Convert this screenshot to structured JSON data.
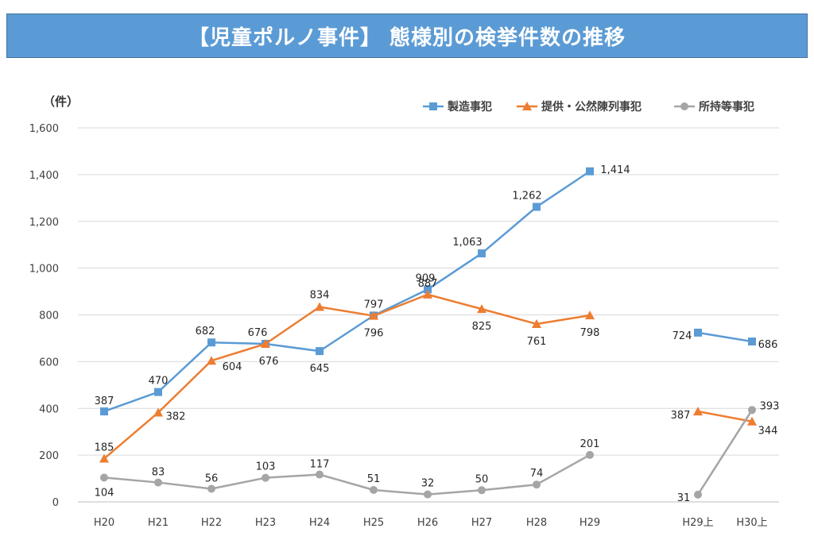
{
  "header": {
    "title": "【児童ポルノ事件】 態様別の検挙件数の推移"
  },
  "chart_data": {
    "type": "line",
    "title": "【児童ポルノ事件】 態様別の検挙件数の推移",
    "ylabel": "（件）",
    "xlabel": "",
    "ylim": [
      0,
      1600
    ],
    "yticks": [
      0,
      200,
      400,
      600,
      800,
      1000,
      1200,
      1400,
      1600
    ],
    "ytick_labels": [
      "0",
      "200",
      "400",
      "600",
      "800",
      "1,000",
      "1,200",
      "1,400",
      "1,600"
    ],
    "grid": true,
    "legend_position": "top-right",
    "categories": [
      "H20",
      "H21",
      "H22",
      "H23",
      "H24",
      "H25",
      "H26",
      "H27",
      "H28",
      "H29",
      "H29上",
      "H30上"
    ],
    "groups": [
      [
        0,
        1,
        2,
        3,
        4,
        5,
        6,
        7,
        8,
        9
      ],
      [
        10,
        11
      ]
    ],
    "series": [
      {
        "name": "製造事犯",
        "marker": "square",
        "color": "#5b9bd5",
        "values": [
          387,
          470,
          682,
          676,
          645,
          797,
          909,
          1063,
          1262,
          1414,
          724,
          686
        ],
        "labels": [
          "387",
          "470",
          "682",
          "676",
          "645",
          "797",
          "909",
          "1,063",
          "1,262",
          "1,414",
          "724",
          "686"
        ]
      },
      {
        "name": "提供・公然陳列事犯",
        "marker": "triangle",
        "color": "#ed7d31",
        "values": [
          185,
          382,
          604,
          676,
          834,
          796,
          887,
          825,
          761,
          798,
          387,
          344
        ],
        "labels": [
          "185",
          "382",
          "604",
          "676",
          "834",
          "796",
          "887",
          "825",
          "761",
          "798",
          "387",
          "344"
        ]
      },
      {
        "name": "所持等事犯",
        "marker": "circle",
        "color": "#a5a5a5",
        "values": [
          104,
          83,
          56,
          103,
          117,
          51,
          32,
          50,
          74,
          201,
          31,
          393
        ],
        "labels": [
          "104",
          "83",
          "56",
          "103",
          "117",
          "51",
          "32",
          "50",
          "74",
          "201",
          "31",
          "393"
        ]
      }
    ]
  }
}
